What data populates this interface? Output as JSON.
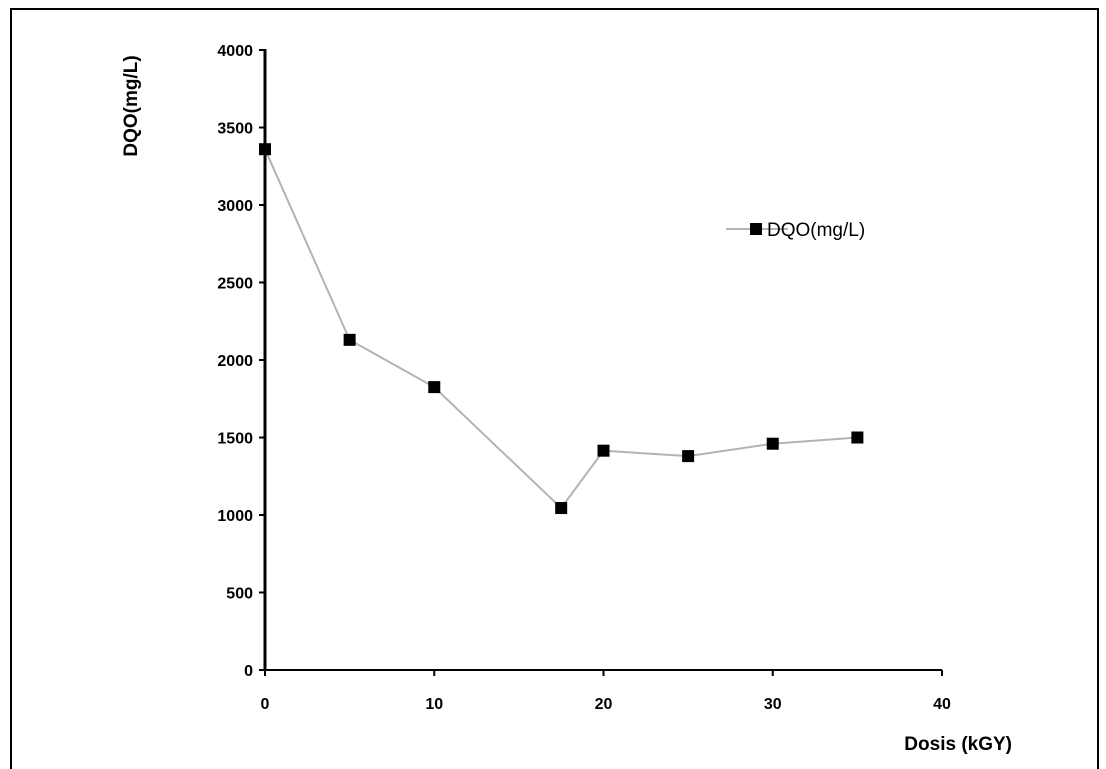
{
  "chart_data": {
    "type": "line",
    "title": "",
    "xlabel": "Dosis (kGY)",
    "ylabel": "DQO(mg/L)",
    "xlim": [
      0,
      40
    ],
    "ylim": [
      0,
      4000
    ],
    "xticks": [
      0,
      10,
      20,
      30,
      40
    ],
    "yticks": [
      0,
      500,
      1000,
      1500,
      2000,
      2500,
      3000,
      3500,
      4000
    ],
    "grid": false,
    "legend_position": "right",
    "series": [
      {
        "name": "DQO(mg/L)",
        "color": "#b3b3b3",
        "marker": "square",
        "marker_color": "#000000",
        "x": [
          0,
          5,
          10,
          17.5,
          20,
          25,
          30,
          35
        ],
        "y": [
          3360,
          2130,
          1825,
          1045,
          1415,
          1380,
          1460,
          1500
        ]
      }
    ]
  }
}
